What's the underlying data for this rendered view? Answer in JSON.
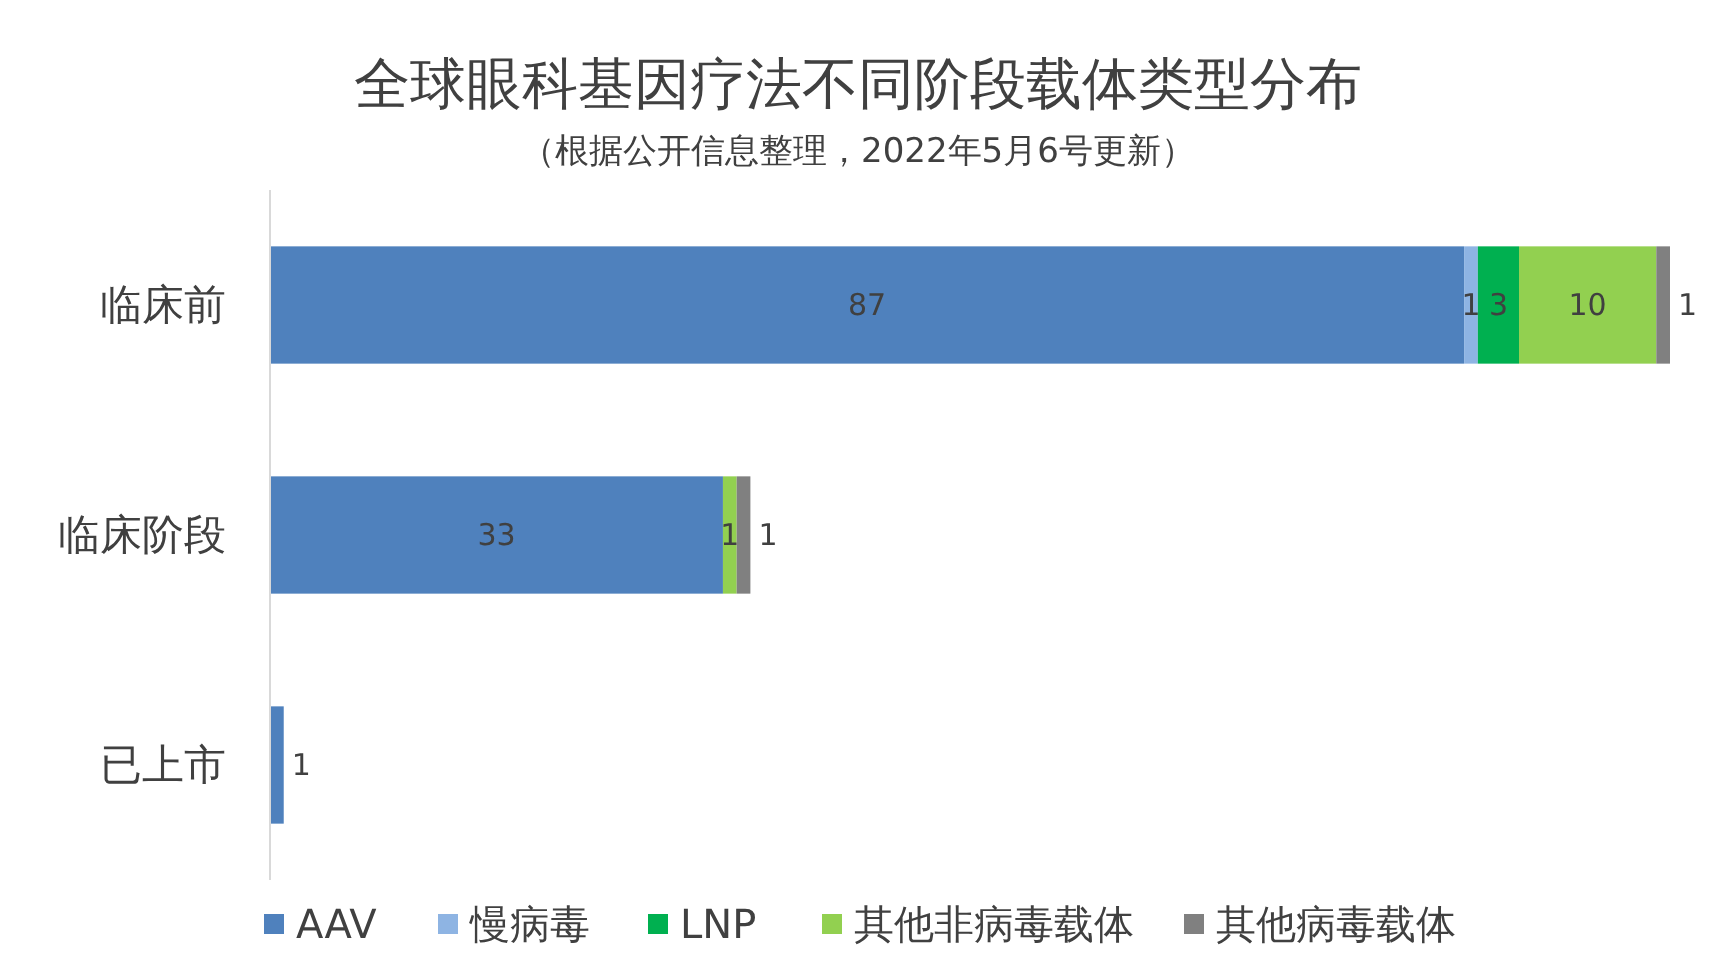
{
  "chart_data": {
    "type": "bar",
    "orientation": "horizontal",
    "stacked": true,
    "data_labels": true,
    "title": "全球眼科基因疗法不同阶段载体类型分布",
    "subtitle": "（根据公开信息整理，2022年5月6号更新）",
    "categories": [
      "临床前",
      "临床阶段",
      "已上市"
    ],
    "series": [
      {
        "name": "AAV",
        "color": "#4f81bd",
        "values": [
          87,
          33,
          1
        ]
      },
      {
        "name": "慢病毒",
        "color": "#8eb4e3",
        "values": [
          1,
          null,
          null
        ]
      },
      {
        "name": "LNP",
        "color": "#00b050",
        "values": [
          3,
          null,
          null
        ]
      },
      {
        "name": "其他非病毒载体",
        "color": "#92d050",
        "values": [
          10,
          1,
          null
        ]
      },
      {
        "name": "其他病毒载体",
        "color": "#808080",
        "values": [
          1,
          1,
          null
        ]
      }
    ],
    "legend": "bottom"
  }
}
